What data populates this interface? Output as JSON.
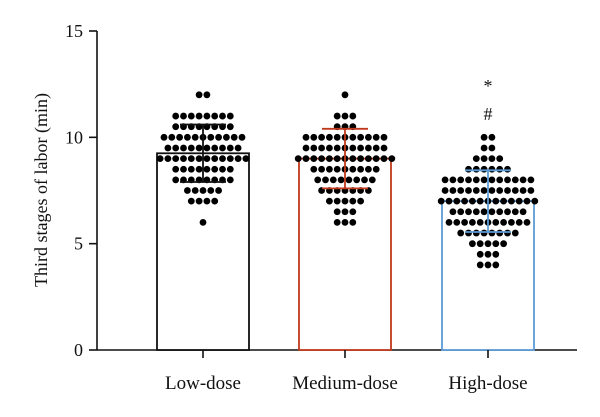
{
  "chart_data": {
    "type": "bar",
    "title": "",
    "xlabel": "",
    "ylabel": "Third stages of labor (min)",
    "ylim": [
      0,
      15
    ],
    "yticks": [
      0,
      5,
      10,
      15
    ],
    "grid": false,
    "categories": [
      "Low-dose",
      "Medium-dose",
      "High-dose"
    ],
    "series": [
      {
        "values": [
          9.25,
          9.0,
          7.0
        ],
        "error_sd": [
          1.35,
          1.4,
          1.45
        ],
        "colors": [
          "#111111",
          "#c0391b",
          "#5b9bd5"
        ]
      }
    ],
    "points": [
      {
        "value": 12,
        "count": 2
      },
      {
        "value": 11,
        "count": 8
      },
      {
        "value": 10.5,
        "count": 8
      },
      {
        "value": 10,
        "count": 11
      },
      {
        "value": 9.5,
        "count": 10
      },
      {
        "value": 9,
        "count": 12
      },
      {
        "value": 8.5,
        "count": 8
      },
      {
        "value": 8,
        "count": 8
      },
      {
        "value": 7.5,
        "count": 5
      },
      {
        "value": 7,
        "count": 4
      },
      {
        "value": 6,
        "count": 1
      }
    ],
    "points_by_group": [
      [
        {
          "value": 12,
          "count": 2
        },
        {
          "value": 11,
          "count": 8
        },
        {
          "value": 10.5,
          "count": 8
        },
        {
          "value": 10,
          "count": 11
        },
        {
          "value": 9.5,
          "count": 10
        },
        {
          "value": 9,
          "count": 12
        },
        {
          "value": 8.5,
          "count": 8
        },
        {
          "value": 8,
          "count": 8
        },
        {
          "value": 7.5,
          "count": 5
        },
        {
          "value": 7,
          "count": 4
        },
        {
          "value": 6,
          "count": 1
        }
      ],
      [
        {
          "value": 12,
          "count": 1
        },
        {
          "value": 11,
          "count": 3
        },
        {
          "value": 10.5,
          "count": 3
        },
        {
          "value": 10,
          "count": 11
        },
        {
          "value": 9.5,
          "count": 11
        },
        {
          "value": 9,
          "count": 13
        },
        {
          "value": 8.5,
          "count": 9
        },
        {
          "value": 8,
          "count": 8
        },
        {
          "value": 7.5,
          "count": 7
        },
        {
          "value": 7,
          "count": 5
        },
        {
          "value": 6.5,
          "count": 3
        },
        {
          "value": 6,
          "count": 3
        }
      ],
      [
        {
          "value": 10,
          "count": 2
        },
        {
          "value": 9.5,
          "count": 2
        },
        {
          "value": 9,
          "count": 4
        },
        {
          "value": 8.5,
          "count": 6
        },
        {
          "value": 8,
          "count": 12
        },
        {
          "value": 7.5,
          "count": 12
        },
        {
          "value": 7,
          "count": 13
        },
        {
          "value": 6.5,
          "count": 10
        },
        {
          "value": 6,
          "count": 11
        },
        {
          "value": 5.5,
          "count": 8
        },
        {
          "value": 5,
          "count": 5
        },
        {
          "value": 4.5,
          "count": 3
        },
        {
          "value": 4,
          "count": 3
        }
      ]
    ],
    "annotations": [
      {
        "category": "High-dose",
        "text": "*"
      },
      {
        "category": "High-dose",
        "text": "#"
      }
    ]
  }
}
